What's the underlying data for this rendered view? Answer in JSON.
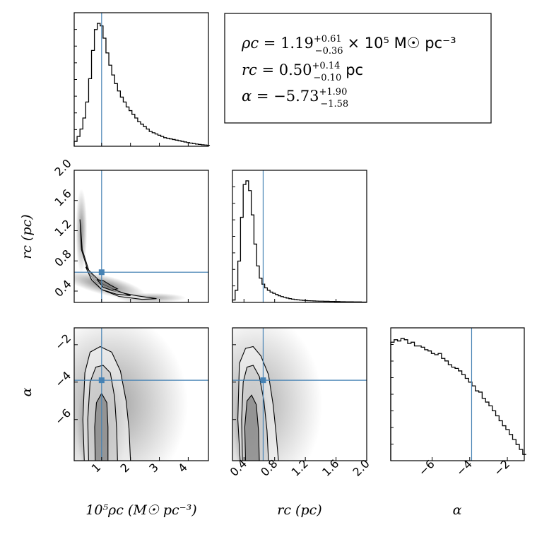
{
  "chart_data": {
    "type": "corner",
    "truth_color": "#4682b4",
    "line_color": "#000000",
    "parameters": [
      {
        "key": "rho",
        "label": "10⁵ρc (M☉ pc⁻³)",
        "range": [
          0.05,
          4.7
        ],
        "ticks": [
          1,
          2,
          3,
          4
        ],
        "tick_labels": [
          "1",
          "2",
          "3",
          "4"
        ],
        "truth": 1.0
      },
      {
        "key": "rc",
        "label": "rc (pc)",
        "range": [
          0.25,
          2.0
        ],
        "ticks": [
          0.4,
          0.8,
          1.2,
          1.6,
          2.0
        ],
        "tick_labels": [
          "0.4",
          "0.8",
          "1.2",
          "1.6",
          "2.0"
        ],
        "truth": 0.65
      },
      {
        "key": "alpha",
        "label": "α",
        "range": [
          -8.2,
          -1.1
        ],
        "ticks": [
          -6,
          -4,
          -2
        ],
        "tick_labels": [
          "−6",
          "−4",
          "−2"
        ],
        "truth": -3.9
      }
    ],
    "histograms": {
      "rho": {
        "edges_step": 0.1,
        "start": 0.05,
        "values": [
          0.04,
          0.08,
          0.14,
          0.23,
          0.36,
          0.55,
          0.78,
          0.95,
          1.0,
          0.98,
          0.88,
          0.76,
          0.66,
          0.58,
          0.51,
          0.45,
          0.4,
          0.36,
          0.32,
          0.29,
          0.26,
          0.23,
          0.2,
          0.18,
          0.16,
          0.14,
          0.12,
          0.11,
          0.1,
          0.09,
          0.08,
          0.07,
          0.065,
          0.06,
          0.055,
          0.05,
          0.045,
          0.04,
          0.035,
          0.03,
          0.026,
          0.022,
          0.018,
          0.015,
          0.012,
          0.01,
          0.008
        ]
      },
      "rc": {
        "edges_step": 0.035,
        "start": 0.25,
        "values": [
          0.02,
          0.1,
          0.34,
          0.7,
          0.97,
          1.0,
          0.92,
          0.72,
          0.48,
          0.3,
          0.2,
          0.15,
          0.12,
          0.1,
          0.085,
          0.075,
          0.065,
          0.055,
          0.048,
          0.042,
          0.036,
          0.031,
          0.027,
          0.024,
          0.021,
          0.019,
          0.017,
          0.015,
          0.014,
          0.013,
          0.012,
          0.011,
          0.01,
          0.01,
          0.009,
          0.009,
          0.008,
          0.008,
          0.007,
          0.007,
          0.006,
          0.006,
          0.005,
          0.005,
          0.005,
          0.004,
          0.004,
          0.004,
          0.003,
          0.003
        ]
      },
      "alpha": {
        "edges_step": 0.18,
        "start": -8.2,
        "values": [
          0.95,
          0.97,
          0.96,
          0.98,
          0.97,
          0.94,
          0.95,
          0.92,
          0.92,
          0.91,
          0.89,
          0.88,
          0.86,
          0.85,
          0.86,
          0.82,
          0.8,
          0.77,
          0.75,
          0.74,
          0.72,
          0.69,
          0.66,
          0.63,
          0.6,
          0.56,
          0.55,
          0.5,
          0.47,
          0.44,
          0.4,
          0.36,
          0.32,
          0.28,
          0.25,
          0.21,
          0.17,
          0.13,
          0.09,
          0.05
        ]
      }
    },
    "contours": {
      "rc_vs_rho": [
        {
          "level": "outer",
          "points": [
            [
              0.25,
              1.35
            ],
            [
              0.33,
              0.95
            ],
            [
              0.6,
              0.62
            ],
            [
              1.0,
              0.42
            ],
            [
              1.6,
              0.33
            ],
            [
              2.4,
              0.29
            ],
            [
              2.9,
              0.3
            ],
            [
              2.2,
              0.34
            ],
            [
              1.4,
              0.4
            ],
            [
              0.9,
              0.5
            ],
            [
              0.5,
              0.7
            ],
            [
              0.3,
              0.95
            ],
            [
              0.25,
              1.35
            ]
          ]
        },
        {
          "level": "mid",
          "points": [
            [
              0.45,
              0.72
            ],
            [
              0.65,
              0.55
            ],
            [
              1.0,
              0.42
            ],
            [
              1.5,
              0.36
            ],
            [
              2.0,
              0.34
            ],
            [
              1.5,
              0.41
            ],
            [
              1.05,
              0.49
            ],
            [
              0.7,
              0.62
            ],
            [
              0.45,
              0.72
            ]
          ]
        },
        {
          "level": "inner",
          "points": [
            [
              0.85,
              0.55
            ],
            [
              1.05,
              0.45
            ],
            [
              1.35,
              0.41
            ],
            [
              1.55,
              0.43
            ],
            [
              1.3,
              0.48
            ],
            [
              1.05,
              0.54
            ],
            [
              0.85,
              0.55
            ]
          ]
        }
      ],
      "alpha_vs_rho": [
        {
          "level": "outer",
          "points": [
            [
              0.4,
              -8.2
            ],
            [
              0.35,
              -6.0
            ],
            [
              0.42,
              -3.5
            ],
            [
              0.6,
              -2.4
            ],
            [
              0.95,
              -2.1
            ],
            [
              1.35,
              -2.4
            ],
            [
              1.65,
              -3.4
            ],
            [
              1.85,
              -5.0
            ],
            [
              1.95,
              -6.5
            ],
            [
              2.0,
              -8.2
            ]
          ]
        },
        {
          "level": "mid",
          "points": [
            [
              0.55,
              -8.2
            ],
            [
              0.52,
              -6.0
            ],
            [
              0.6,
              -4.0
            ],
            [
              0.8,
              -3.2
            ],
            [
              1.05,
              -3.1
            ],
            [
              1.3,
              -3.5
            ],
            [
              1.45,
              -4.8
            ],
            [
              1.52,
              -6.5
            ],
            [
              1.55,
              -8.2
            ]
          ]
        },
        {
          "level": "inner",
          "points": [
            [
              0.78,
              -8.2
            ],
            [
              0.76,
              -6.4
            ],
            [
              0.82,
              -5.1
            ],
            [
              1.0,
              -4.6
            ],
            [
              1.18,
              -5.1
            ],
            [
              1.22,
              -6.4
            ],
            [
              1.22,
              -8.2
            ]
          ]
        }
      ],
      "alpha_vs_rc": [
        {
          "level": "outer",
          "points": [
            [
              0.35,
              -8.2
            ],
            [
              0.32,
              -6.0
            ],
            [
              0.34,
              -3.0
            ],
            [
              0.42,
              -2.2
            ],
            [
              0.52,
              -2.1
            ],
            [
              0.62,
              -2.6
            ],
            [
              0.72,
              -3.6
            ],
            [
              0.78,
              -5.2
            ],
            [
              0.82,
              -6.8
            ],
            [
              0.85,
              -8.2
            ]
          ]
        },
        {
          "level": "mid",
          "points": [
            [
              0.38,
              -8.2
            ],
            [
              0.37,
              -6.0
            ],
            [
              0.39,
              -4.0
            ],
            [
              0.44,
              -3.2
            ],
            [
              0.52,
              -3.1
            ],
            [
              0.6,
              -3.7
            ],
            [
              0.66,
              -5.0
            ],
            [
              0.7,
              -6.6
            ],
            [
              0.72,
              -8.2
            ]
          ]
        },
        {
          "level": "inner",
          "points": [
            [
              0.42,
              -8.2
            ],
            [
              0.41,
              -6.4
            ],
            [
              0.44,
              -5.0
            ],
            [
              0.5,
              -4.7
            ],
            [
              0.56,
              -5.2
            ],
            [
              0.59,
              -6.6
            ],
            [
              0.6,
              -8.2
            ]
          ]
        }
      ]
    },
    "results": [
      {
        "symbol": "ρc",
        "value": "1.19",
        "plus": "+0.61",
        "minus": "−0.36",
        "suffix": "× 10⁵ M☉ pc⁻³"
      },
      {
        "symbol": "rc",
        "value": "0.50",
        "plus": "+0.14",
        "minus": "−0.10",
        "suffix": "pc"
      },
      {
        "symbol": "α",
        "value": "−5.73",
        "plus": "+1.90",
        "minus": "−1.58",
        "suffix": ""
      }
    ]
  }
}
